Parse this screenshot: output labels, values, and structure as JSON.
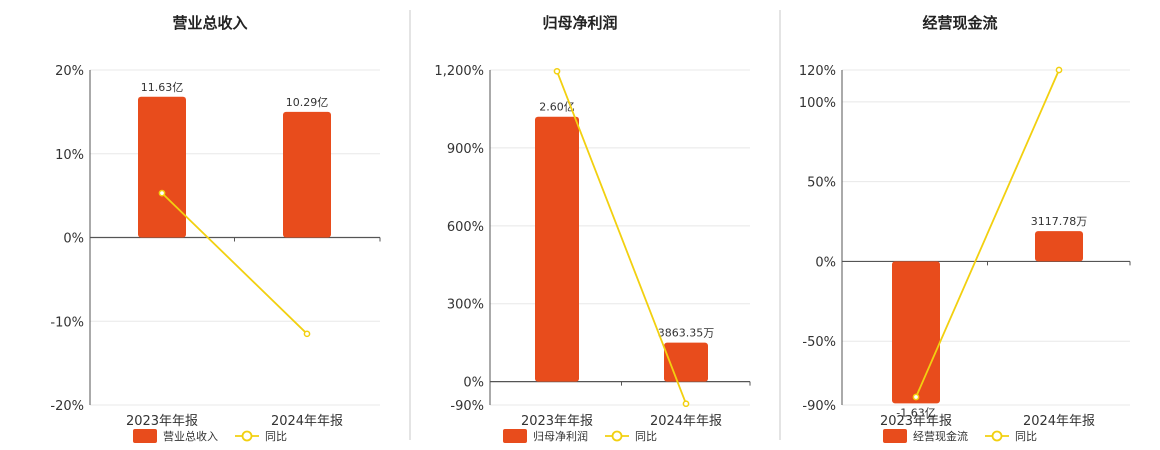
{
  "colors": {
    "bar": "#E84C1C",
    "line": "#F2D010",
    "grid": "#E8E8E8",
    "axis": "#555555",
    "separator": "#C8C8C8"
  },
  "chart_data": [
    {
      "type": "bar",
      "title": "营业总收入",
      "categories": [
        "2023年年报",
        "2024年年报"
      ],
      "ylim": [
        -20,
        20
      ],
      "yticks": [
        20,
        10,
        0,
        -10,
        -20
      ],
      "ytick_labels": [
        "20%",
        "10%",
        "0%",
        "-10%",
        "-20%"
      ],
      "grid": true,
      "legend": "bottom",
      "series": [
        {
          "name": "营业总收入",
          "type": "bar",
          "values": [
            16.8,
            15.0
          ],
          "labels": [
            "11.63亿",
            "10.29亿"
          ]
        },
        {
          "name": "同比",
          "type": "line",
          "values": [
            5.3,
            -11.5
          ]
        }
      ]
    },
    {
      "type": "bar",
      "title": "归母净利润",
      "categories": [
        "2023年年报",
        "2024年年报"
      ],
      "ylim": [
        -90,
        1200
      ],
      "yticks": [
        1200,
        900,
        600,
        300,
        0,
        -90
      ],
      "ytick_labels": [
        "1,200%",
        "900%",
        "600%",
        "300%",
        "0%",
        "-90%"
      ],
      "grid": true,
      "legend": "bottom",
      "series": [
        {
          "name": "归母净利润",
          "type": "bar",
          "values": [
            1020,
            150
          ],
          "labels": [
            "2.60亿",
            "3863.35万"
          ]
        },
        {
          "name": "同比",
          "type": "line",
          "values": [
            1195,
            -85
          ]
        }
      ]
    },
    {
      "type": "bar",
      "title": "经营现金流",
      "categories": [
        "2023年年报",
        "2024年年报"
      ],
      "ylim": [
        -90,
        120
      ],
      "yticks": [
        120,
        100,
        50,
        0,
        -50,
        -90
      ],
      "ytick_labels": [
        "120%",
        "100%",
        "50%",
        "0%",
        "-50%",
        "-90%"
      ],
      "grid": true,
      "legend": "bottom",
      "series": [
        {
          "name": "经营现金流",
          "type": "bar",
          "values": [
            -89,
            19
          ],
          "labels": [
            "-1.63亿",
            "3117.78万"
          ]
        },
        {
          "name": "同比",
          "type": "line",
          "values": [
            -85,
            120
          ]
        }
      ]
    }
  ]
}
